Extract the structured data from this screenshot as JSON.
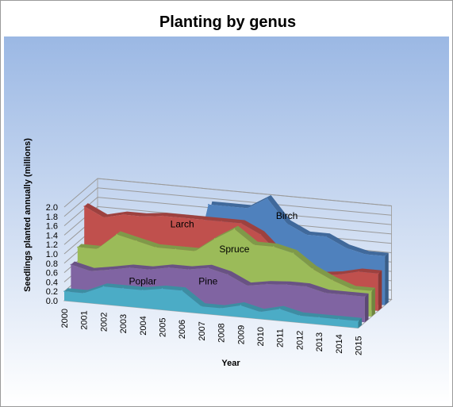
{
  "chart_data": {
    "type": "area",
    "variant": "3d-stacked-depth",
    "title": "Planting by genus",
    "xlabel": "Year",
    "ylabel": "Seedlings planted annually (millions)",
    "ylim": [
      0,
      2
    ],
    "yticks": [
      "0.0",
      "0.2",
      "0.4",
      "0.6",
      "0.8",
      "1.0",
      "1.2",
      "1.4",
      "1.6",
      "1.8",
      "2.0"
    ],
    "grid": true,
    "categories": [
      "2000",
      "2001",
      "2002",
      "2003",
      "2004",
      "2005",
      "2006",
      "2007",
      "2008",
      "2009",
      "2010",
      "2011",
      "2012",
      "2013",
      "2014",
      "2015"
    ],
    "series": [
      {
        "name": "Poplar",
        "color": "#4bacc6",
        "values": [
          0.2,
          0.2,
          0.38,
          0.38,
          0.38,
          0.45,
          0.45,
          0.15,
          0.15,
          0.25,
          0.15,
          0.25,
          0.15,
          0.15,
          0.15,
          0.15
        ]
      },
      {
        "name": "Pine",
        "color": "#8064a2",
        "values": [
          0.65,
          0.55,
          0.62,
          0.7,
          0.7,
          0.78,
          0.78,
          0.85,
          0.75,
          0.55,
          0.62,
          0.65,
          0.65,
          0.55,
          0.55,
          0.55
        ]
      },
      {
        "name": "Spruce",
        "color": "#9bbb59",
        "values": [
          0.9,
          0.9,
          1.25,
          1.15,
          1.05,
          1.05,
          1.05,
          1.35,
          1.6,
          1.3,
          1.3,
          1.2,
          0.9,
          0.7,
          0.55,
          0.55
        ]
      },
      {
        "name": "Larch",
        "color": "#c0504d",
        "values": [
          1.65,
          1.45,
          1.55,
          1.55,
          1.6,
          1.6,
          1.6,
          1.6,
          1.6,
          1.4,
          1.0,
          0.8,
          0.65,
          0.7,
          0.8,
          0.8
        ]
      },
      {
        "name": "Birch",
        "color": "#4f81bd",
        "values": [
          0.0,
          0.0,
          0.0,
          0.0,
          0.0,
          0.0,
          1.8,
          1.8,
          1.8,
          2.05,
          1.55,
          1.35,
          1.35,
          1.15,
          1.05,
          1.05
        ]
      }
    ]
  }
}
